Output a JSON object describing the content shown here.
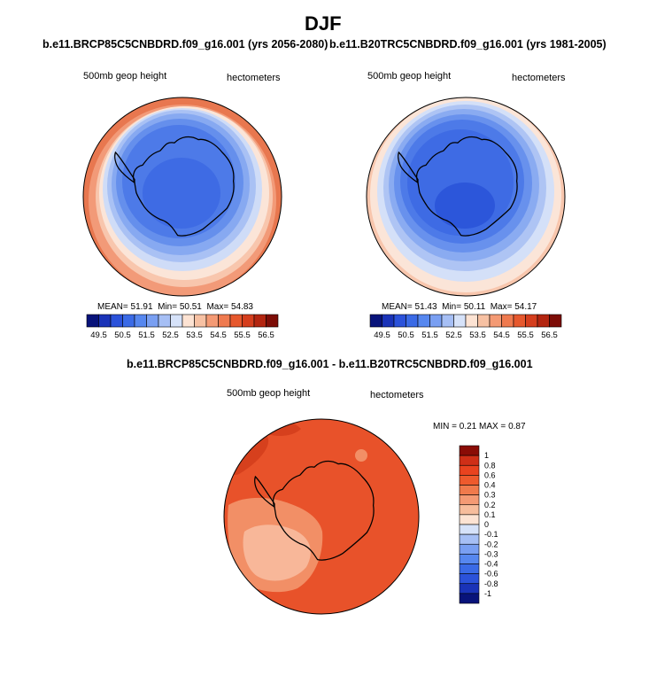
{
  "page": {
    "season": "DJF",
    "diff_title": "b.e11.BRCP85C5CNBDRD.f09_g16.001 - b.e11.B20TRC5CNBDRD.f09_g16.001"
  },
  "chart_data": [
    {
      "type": "heatmap",
      "projection": "south-polar stereographic",
      "title": "b.e11.BRCP85C5CNBDRD.f09_g16.001 (yrs 2056-2080)",
      "variable_label": "500mb geop height",
      "units_label": "hectometers",
      "stats": {
        "mean_label": "MEAN=",
        "mean": "51.91",
        "min_label": "Min=",
        "min": "50.51",
        "max_label": "Max=",
        "max": "54.83"
      },
      "colorbar": {
        "orientation": "horizontal",
        "levels": [
          49.5,
          50,
          50.5,
          51,
          51.5,
          52,
          52.5,
          53,
          53.5,
          54,
          54.5,
          55,
          55.5,
          56,
          56.5
        ],
        "tick_labels": [
          "49.5",
          "50.5",
          "51.5",
          "52.5",
          "53.5",
          "54.5",
          "55.5",
          "56.5"
        ],
        "colors": [
          "#08137a",
          "#1a33b8",
          "#2b52da",
          "#3a6ae6",
          "#5687ef",
          "#799ff2",
          "#a6bff5",
          "#d6e2f9",
          "#fde3d3",
          "#f7c1a3",
          "#f49a74",
          "#ef7a4f",
          "#e6582d",
          "#d53e1d",
          "#b32510",
          "#7d0d07"
        ]
      }
    },
    {
      "type": "heatmap",
      "projection": "south-polar stereographic",
      "title": "b.e11.B20TRC5CNBDRD.f09_g16.001 (yrs 1981-2005)",
      "variable_label": "500mb geop height",
      "units_label": "hectometers",
      "stats": {
        "mean_label": "MEAN=",
        "mean": "51.43",
        "min_label": "Min=",
        "min": "50.11",
        "max_label": "Max=",
        "max": "54.17"
      },
      "colorbar": {
        "orientation": "horizontal",
        "levels": [
          49.5,
          50,
          50.5,
          51,
          51.5,
          52,
          52.5,
          53,
          53.5,
          54,
          54.5,
          55,
          55.5,
          56,
          56.5
        ],
        "tick_labels": [
          "49.5",
          "50.5",
          "51.5",
          "52.5",
          "53.5",
          "54.5",
          "55.5",
          "56.5"
        ],
        "colors": [
          "#08137a",
          "#1a33b8",
          "#2b52da",
          "#3a6ae6",
          "#5687ef",
          "#799ff2",
          "#a6bff5",
          "#d6e2f9",
          "#fde3d3",
          "#f7c1a3",
          "#f49a74",
          "#ef7a4f",
          "#e6582d",
          "#d53e1d",
          "#b32510",
          "#7d0d07"
        ]
      }
    },
    {
      "type": "heatmap",
      "projection": "south-polar stereographic",
      "title": "b.e11.BRCP85C5CNBDRD.f09_g16.001 - b.e11.B20TRC5CNBDRD.f09_g16.001",
      "variable_label": "500mb geop height",
      "units_label": "hectometers",
      "stats": {
        "min_label": "MIN =",
        "min": "0.21",
        "max_label": "MAX =",
        "max": "0.87"
      },
      "colorbar": {
        "orientation": "vertical",
        "tick_labels": [
          "1",
          "0.8",
          "0.6",
          "0.4",
          "0.3",
          "0.2",
          "0.1",
          "0",
          "-0.1",
          "-0.2",
          "-0.3",
          "-0.4",
          "-0.6",
          "-0.8",
          "-1"
        ],
        "colors": [
          "#8a0c06",
          "#cf2f17",
          "#e9431f",
          "#ee5a2d",
          "#f07a4c",
          "#f49a74",
          "#f7bd9c",
          "#fde3d3",
          "#d6e2f9",
          "#a6bff5",
          "#799ff2",
          "#5687ef",
          "#3a6ae6",
          "#2b52da",
          "#1a33b8",
          "#08137a"
        ]
      }
    }
  ]
}
